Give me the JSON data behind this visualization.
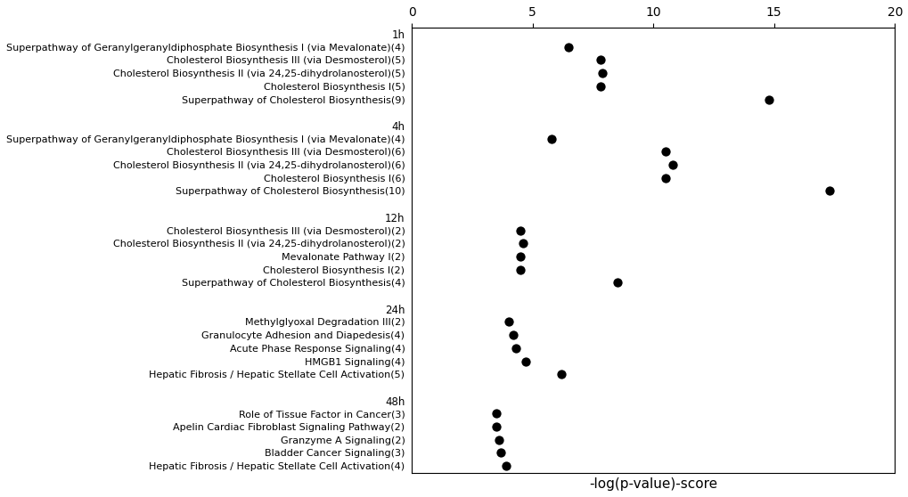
{
  "title": "",
  "xlabel": "-log(p-value)-score",
  "xlim": [
    0,
    20
  ],
  "xticks": [
    0,
    5,
    10,
    15,
    20
  ],
  "background_color": "#ffffff",
  "groups": [
    {
      "label": "1h",
      "pathways": [
        {
          "name": "Superpathway of Geranylgeranyldiphosphate Biosynthesis I (via Mevalonate)(4)",
          "x": 6.5
        },
        {
          "name": "Cholesterol Biosynthesis III (via Desmosterol)(5)",
          "x": 7.8
        },
        {
          "name": "Cholesterol Biosynthesis II (via 24,25-dihydrolanosterol)(5)",
          "x": 7.9
        },
        {
          "name": "Cholesterol Biosynthesis I(5)",
          "x": 7.8
        },
        {
          "name": "Superpathway of Cholesterol Biosynthesis(9)",
          "x": 14.8
        }
      ]
    },
    {
      "label": "4h",
      "pathways": [
        {
          "name": "Superpathway of Geranylgeranyldiphosphate Biosynthesis I (via Mevalonate)(4)",
          "x": 5.8
        },
        {
          "name": "Cholesterol Biosynthesis III (via Desmosterol)(6)",
          "x": 10.5
        },
        {
          "name": "Cholesterol Biosynthesis II (via 24,25-dihydrolanosterol)(6)",
          "x": 10.8
        },
        {
          "name": "Cholesterol Biosynthesis I(6)",
          "x": 10.5
        },
        {
          "name": "Superpathway of Cholesterol Biosynthesis(10)",
          "x": 17.3
        }
      ]
    },
    {
      "label": "12h",
      "pathways": [
        {
          "name": "Cholesterol Biosynthesis III (via Desmosterol)(2)",
          "x": 4.5
        },
        {
          "name": "Cholesterol Biosynthesis II (via 24,25-dihydrolanosterol)(2)",
          "x": 4.6
        },
        {
          "name": "Mevalonate Pathway I(2)",
          "x": 4.5
        },
        {
          "name": "Cholesterol Biosynthesis I(2)",
          "x": 4.5
        },
        {
          "name": "Superpathway of Cholesterol Biosynthesis(4)",
          "x": 8.5
        }
      ]
    },
    {
      "label": "24h",
      "pathways": [
        {
          "name": "Methylglyoxal Degradation III(2)",
          "x": 4.0
        },
        {
          "name": "Granulocyte Adhesion and Diapedesis(4)",
          "x": 4.2
        },
        {
          "name": "Acute Phase Response Signaling(4)",
          "x": 4.3
        },
        {
          "name": "HMGB1 Signaling(4)",
          "x": 4.7
        },
        {
          "name": "Hepatic Fibrosis / Hepatic Stellate Cell Activation(5)",
          "x": 6.2
        }
      ]
    },
    {
      "label": "48h",
      "pathways": [
        {
          "name": "Role of Tissue Factor in Cancer(3)",
          "x": 3.5
        },
        {
          "name": "Apelin Cardiac Fibroblast Signaling Pathway(2)",
          "x": 3.5
        },
        {
          "name": "Granzyme A Signaling(2)",
          "x": 3.6
        },
        {
          "name": "Bladder Cancer Signaling(3)",
          "x": 3.7
        },
        {
          "name": "Hepatic Fibrosis / Hepatic Stellate Cell Activation(4)",
          "x": 3.9
        }
      ]
    }
  ],
  "dot_color": "#000000",
  "dot_size": 55,
  "label_fontsize": 8.0,
  "group_label_fontsize": 8.5,
  "axis_label_fontsize": 11
}
